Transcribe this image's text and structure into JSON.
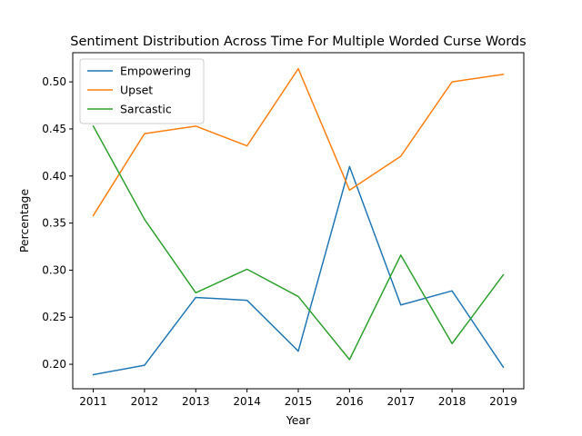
{
  "chart_data": {
    "type": "line",
    "title": "Sentiment Distribution Across Time For Multiple Worded Curse Words",
    "xlabel": "Year",
    "ylabel": "Percentage",
    "x": [
      2011,
      2012,
      2013,
      2014,
      2015,
      2016,
      2017,
      2018,
      2019
    ],
    "xticks": [
      "2011",
      "2012",
      "2013",
      "2014",
      "2015",
      "2016",
      "2017",
      "2018",
      "2019"
    ],
    "xlim": [
      2010.6,
      2019.4
    ],
    "ylim": [
      0.174,
      0.531
    ],
    "yticks": [
      0.2,
      0.25,
      0.3,
      0.35,
      0.4,
      0.45,
      0.5
    ],
    "ytick_labels": [
      "0.20",
      "0.25",
      "0.30",
      "0.35",
      "0.40",
      "0.45",
      "0.50"
    ],
    "grid": false,
    "legend_position": "top-left",
    "series": [
      {
        "name": "Empowering",
        "color": "#1f77b4",
        "values": [
          0.189,
          0.199,
          0.271,
          0.268,
          0.214,
          0.41,
          0.263,
          0.278,
          0.197
        ]
      },
      {
        "name": "Upset",
        "color": "#ff7f0e",
        "values": [
          0.358,
          0.445,
          0.453,
          0.432,
          0.514,
          0.385,
          0.421,
          0.5,
          0.508
        ]
      },
      {
        "name": "Sarcastic",
        "color": "#2ca02c",
        "values": [
          0.453,
          0.354,
          0.276,
          0.301,
          0.272,
          0.205,
          0.316,
          0.222,
          0.295
        ]
      }
    ]
  }
}
